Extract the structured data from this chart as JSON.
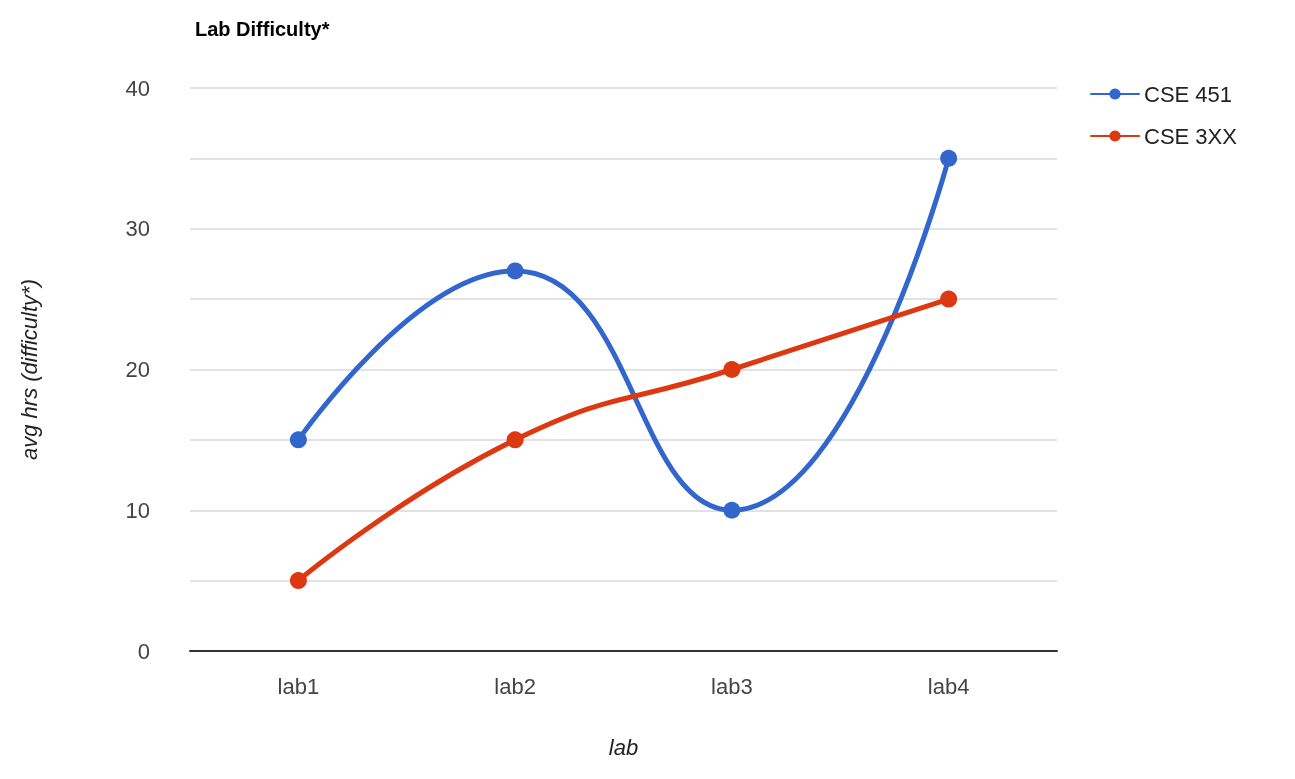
{
  "chart_data": {
    "type": "line",
    "title": "Lab Difficulty*",
    "xlabel": "lab",
    "ylabel": "avg hrs (difficulty*)",
    "categories": [
      "lab1",
      "lab2",
      "lab3",
      "lab4"
    ],
    "series": [
      {
        "name": "CSE 451",
        "color": "#3366cc",
        "values": [
          15,
          27,
          10,
          35
        ]
      },
      {
        "name": "CSE 3XX",
        "color": "#dc3912",
        "values": [
          5,
          15,
          20,
          25
        ]
      }
    ],
    "ylim": [
      0,
      40
    ],
    "yticks": [
      0,
      {
        "value": 5,
        "label": null
      },
      10,
      {
        "value": 15,
        "label": null
      },
      20,
      {
        "value": 25,
        "label": null
      },
      30,
      {
        "value": 35,
        "label": null
      },
      40
    ],
    "grid": "y",
    "legend": "top right",
    "marker": "circle",
    "line_style": "solid"
  }
}
